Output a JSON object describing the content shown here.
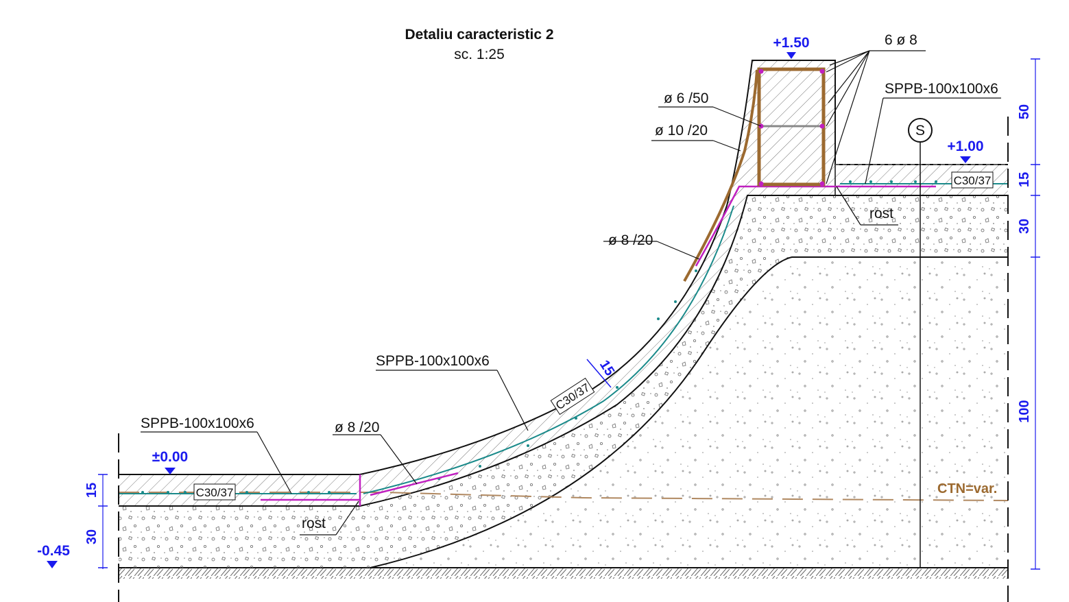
{
  "title": "Detaliu caracteristic 2",
  "scale": "sc. 1:25",
  "levels": {
    "top": "+1.50",
    "right": "+1.00",
    "zero": "±0.00",
    "bottom": "-0.45"
  },
  "labels": {
    "rebar_top": "6 ø 8",
    "stirrup": "ø 6 /50",
    "curved_bar": "ø 10 /20",
    "mesh_right": "SPPB-100x100x6",
    "mesh_mid": "SPPB-100x100x6",
    "mesh_left": "SPPB-100x100x6",
    "bar_upper": "ø 8 /20",
    "bar_lower": "ø 8 /20",
    "joint_right": "rost",
    "joint_left": "rost",
    "section_mark": "S",
    "ctn": "CTN=var."
  },
  "concrete_class": {
    "right": "C30/37",
    "mid": "C30/37",
    "left": "C30/37"
  },
  "dimensions": {
    "right": [
      "50",
      "15",
      "30",
      "100"
    ],
    "left": [
      "15",
      "30"
    ],
    "slab": "15"
  },
  "colors": {
    "level_blue": "#1a1aee",
    "rebar_brown": "#9c6a30",
    "magenta": "#c020c0",
    "mesh_teal": "#1a8a8a",
    "ctn_brown": "#9c6a30"
  }
}
